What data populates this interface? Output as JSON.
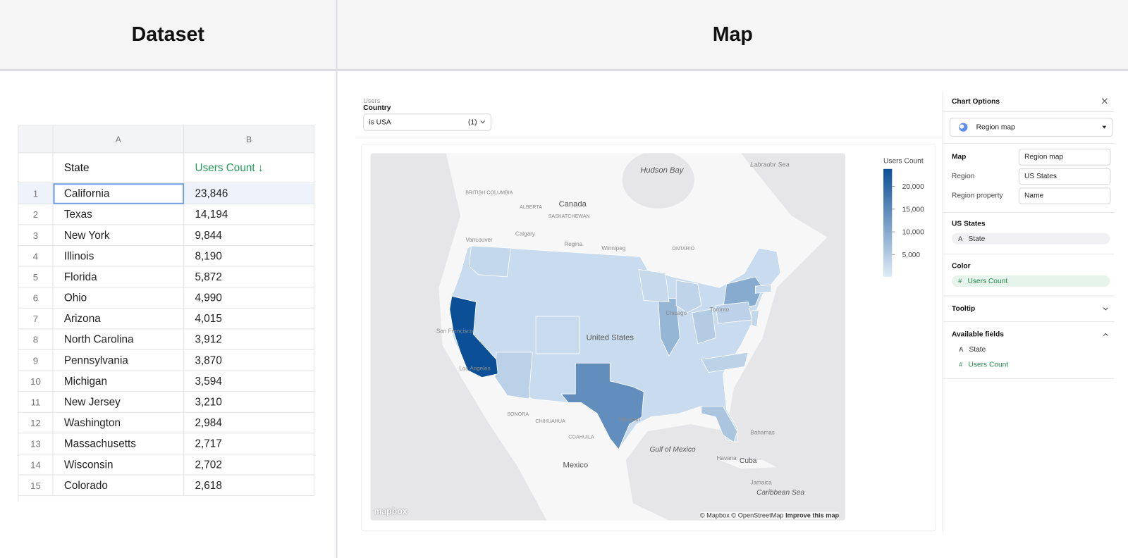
{
  "header": {
    "left_title": "Dataset",
    "right_title": "Map"
  },
  "table": {
    "column_letters": [
      "A",
      "B"
    ],
    "headers": [
      "State",
      "Users Count ↓"
    ],
    "row_numbers": [
      1,
      2,
      3,
      4,
      5,
      6,
      7,
      8,
      9,
      10,
      11,
      12,
      13,
      14,
      15
    ],
    "states": [
      "California",
      "Texas",
      "New York",
      "Illinois",
      "Florida",
      "Ohio",
      "Arizona",
      "North Carolina",
      "Pennsylvania",
      "Michigan",
      "New Jersey",
      "Washington",
      "Massachusetts",
      "Wisconsin",
      "Colorado"
    ],
    "values": [
      23846,
      14194,
      9844,
      8190,
      5872,
      4990,
      4015,
      3912,
      3870,
      3594,
      3210,
      2984,
      2717,
      2702,
      2618
    ],
    "value_labels": [
      "23,846",
      "14,194",
      "9,844",
      "8,190",
      "5,872",
      "4,990",
      "4,015",
      "3,912",
      "3,870",
      "3,594",
      "3,210",
      "2,984",
      "2,717",
      "2,702",
      "2,618"
    ]
  },
  "filter": {
    "group": "Users",
    "field": "Country",
    "condition": "is USA",
    "count": "(1)"
  },
  "map": {
    "labels": [
      "Hudson Bay",
      "Labrador Sea",
      "Canada",
      "BRITISH COLUMBIA",
      "ALBERTA",
      "SASKATCHEWAN",
      "ONTARIO",
      "Calgary",
      "Regina",
      "Winnipeg",
      "Vancouver",
      "Toronto",
      "Chicago",
      "United States",
      "San Francisco",
      "Los Angeles",
      "Houston",
      "SONORA",
      "CHIHUAHUA",
      "COAHUILA",
      "Mexico",
      "Gulf of Mexico",
      "Havana",
      "Cuba",
      "Bahamas",
      "Jamaica",
      "Caribbean Sea"
    ],
    "legend": {
      "title": "Users Count",
      "range": [
        100,
        23846
      ],
      "colors": [
        "#deebf7",
        "#0b4f96"
      ],
      "ticks": [
        {
          "value": 5000,
          "label": "5,000"
        },
        {
          "value": 10000,
          "label": "10,000"
        },
        {
          "value": 15000,
          "label": "15,000"
        },
        {
          "value": 20000,
          "label": "20,000"
        }
      ]
    },
    "logo": "mapbox",
    "attribution": "© Mapbox © OpenStreetMap",
    "improve": "Improve this map"
  },
  "options": {
    "title": "Chart Options",
    "chart_type": "Region map",
    "rows": [
      {
        "label": "Map",
        "value": "Region map"
      },
      {
        "label": "Region",
        "value": "US States"
      },
      {
        "label": "Region property",
        "value": "Name"
      }
    ],
    "text_icon": "A",
    "number_icon": "#",
    "us_states_title": "US States",
    "us_states_field": "State",
    "color_title": "Color",
    "color_field": "Users Count",
    "tooltip_title": "Tooltip",
    "available_title": "Available fields",
    "available_fields": [
      "State",
      "Users Count"
    ]
  }
}
